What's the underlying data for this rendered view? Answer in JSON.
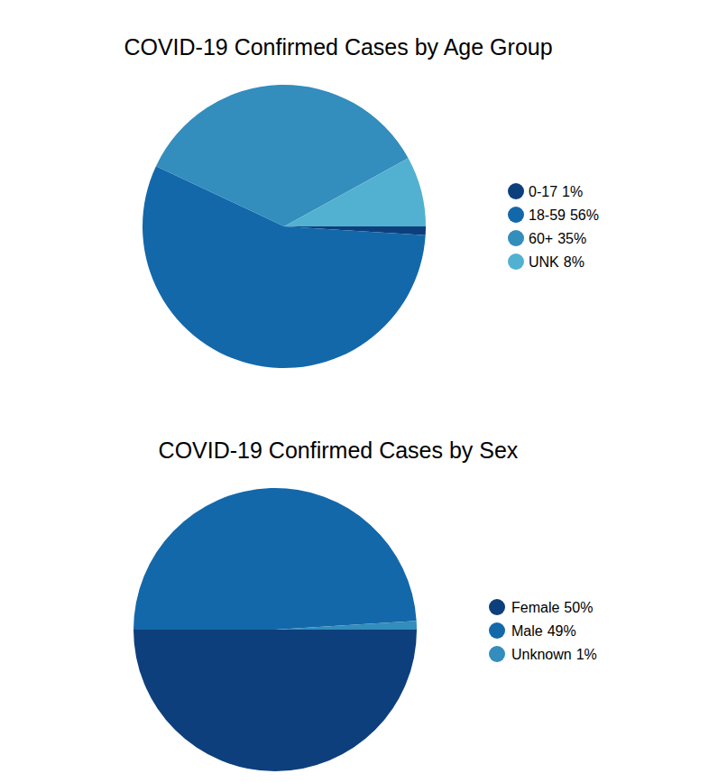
{
  "chart_data": [
    {
      "type": "pie",
      "title": "COVID-19 Confirmed Cases by Age Group",
      "categories": [
        "0-17",
        "18-59",
        "60+",
        "UNK"
      ],
      "values": [
        1,
        56,
        35,
        8
      ],
      "value_labels": [
        "1%",
        "56%",
        "35%",
        "8%"
      ],
      "colors": [
        "#0d3f7c",
        "#1368aa",
        "#338dbd",
        "#52b1d0"
      ],
      "legend": "right"
    },
    {
      "type": "pie",
      "title": "COVID-19 Confirmed Cases by Sex",
      "categories": [
        "Female",
        "Male",
        "Unknown"
      ],
      "values": [
        50,
        49,
        1
      ],
      "value_labels": [
        "50%",
        "49%",
        "1%"
      ],
      "colors": [
        "#0d3f7c",
        "#1368aa",
        "#338dbd"
      ],
      "legend": "right"
    }
  ]
}
